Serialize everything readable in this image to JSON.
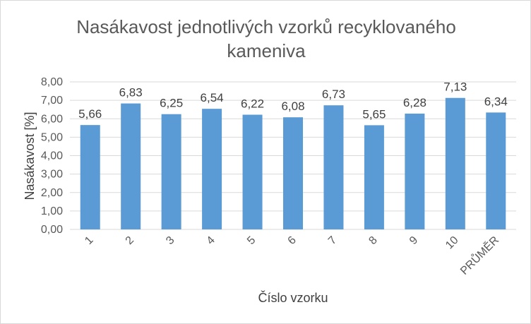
{
  "chart_data": {
    "type": "bar",
    "title_lines": [
      "Nasákavost jednotlivých vzorků recyklovaného",
      "kameniva"
    ],
    "xlabel": "Číslo vzorku",
    "ylabel": "Nasákavost [%]",
    "categories": [
      "1",
      "2",
      "3",
      "4",
      "5",
      "6",
      "7",
      "8",
      "9",
      "10",
      "PRŮMĚR"
    ],
    "values": [
      5.66,
      6.83,
      6.25,
      6.54,
      6.22,
      6.08,
      6.73,
      5.65,
      6.28,
      7.13,
      6.34
    ],
    "value_labels": [
      "5,66",
      "6,83",
      "6,25",
      "6,54",
      "6,22",
      "6,08",
      "6,73",
      "5,65",
      "6,28",
      "7,13",
      "6,34"
    ],
    "ylim": [
      0,
      8
    ],
    "yticks": [
      0,
      1,
      2,
      3,
      4,
      5,
      6,
      7,
      8
    ],
    "ytick_labels": [
      "0,00",
      "1,00",
      "2,00",
      "3,00",
      "4,00",
      "5,00",
      "6,00",
      "7,00",
      "8,00"
    ],
    "grid": true,
    "bar_color": "#5b9bd5"
  }
}
